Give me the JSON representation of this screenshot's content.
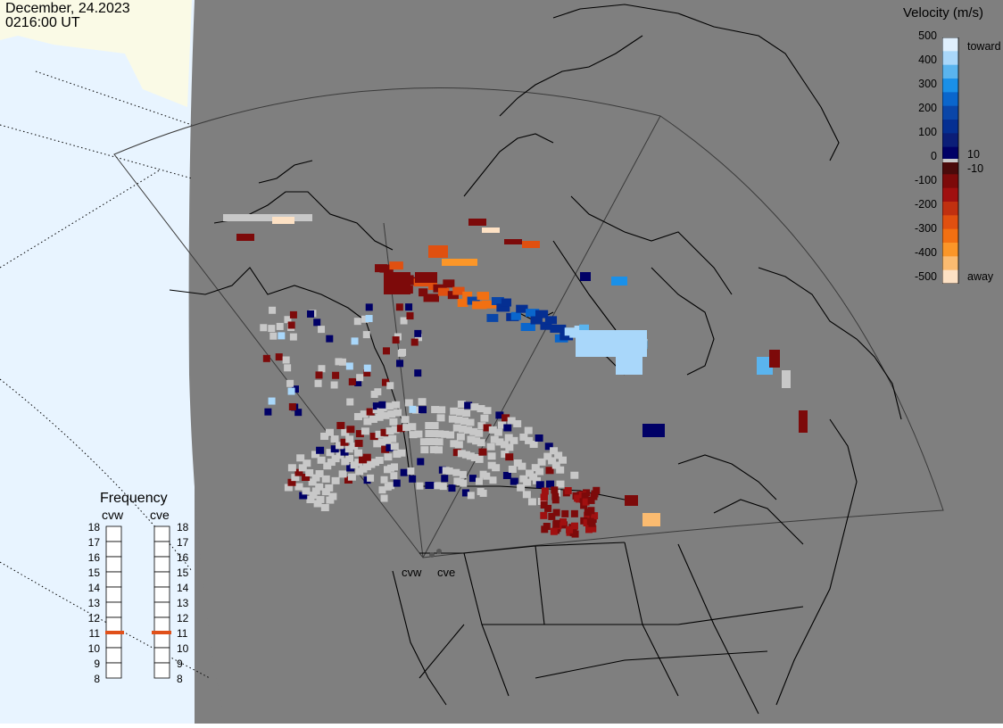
{
  "header": {
    "date": "December, 24.2023",
    "time": "0216:00 UT"
  },
  "velocity_scale": {
    "title": "Velocity (m/s)",
    "ticks": [
      "500",
      "400",
      "300",
      "200",
      "100",
      "0",
      "-100",
      "-200",
      "-300",
      "-400",
      "-500"
    ],
    "extra_ticks": [
      "10",
      "-10"
    ],
    "top_label": "toward",
    "bottom_label": "away",
    "colors": [
      "#dfeffd",
      "#a9d7fa",
      "#5ab4ee",
      "#1a90e8",
      "#0a66cc",
      "#0a46a8",
      "#052f92",
      "#0b1e78",
      "#000066",
      "#4a0a0a",
      "#7d0a0a",
      "#a01010",
      "#c03010",
      "#e05010",
      "#f27012",
      "#fb9628",
      "#fbbb70",
      "#fde1c4"
    ],
    "neutral_color": "#c8c8c8"
  },
  "frequency": {
    "title": "Frequency",
    "radars": [
      "cvw",
      "cve"
    ],
    "ticks": [
      "18",
      "17",
      "16",
      "15",
      "14",
      "13",
      "12",
      "11",
      "10",
      "9",
      "8"
    ],
    "values_mhz": [
      11,
      11
    ],
    "marker_color": "#e0501a"
  },
  "radar_sites": [
    "cvw",
    "cve"
  ],
  "map_colors": {
    "ocean": "#e8f4ff",
    "land_light": "#fafae6",
    "night_gray": "#7f7f7f",
    "coast": "#000000"
  }
}
